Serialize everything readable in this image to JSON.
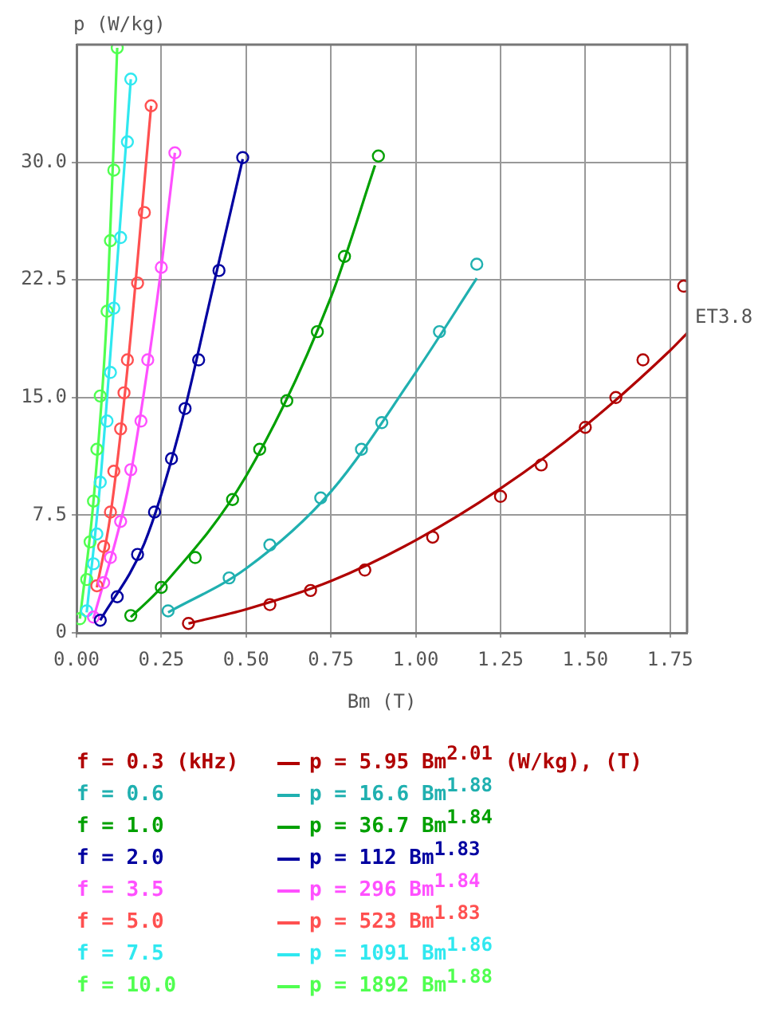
{
  "chart_data": {
    "type": "scatter",
    "xlabel": "Bm (T)",
    "ylabel": "p (W/kg)",
    "annotations": [
      "ET3.8"
    ],
    "xlim": [
      0,
      1.8
    ],
    "ylim": [
      0,
      37.5
    ],
    "xticks": [
      {
        "value": 0,
        "label": "0.00"
      },
      {
        "value": 0.25,
        "label": "0.25"
      },
      {
        "value": 0.5,
        "label": "0.50"
      },
      {
        "value": 0.75,
        "label": "0.75"
      },
      {
        "value": 1,
        "label": "1.00"
      },
      {
        "value": 1.25,
        "label": "1.25"
      },
      {
        "value": 1.5,
        "label": "1.50"
      },
      {
        "value": 1.75,
        "label": "1.75"
      }
    ],
    "yticks": [
      0,
      7.5,
      {
        "value": 15,
        "label": "15.0"
      },
      22.5,
      {
        "value": 30,
        "label": "30.0"
      }
    ],
    "grid": true,
    "legend": "bottom",
    "marker": "circle",
    "line_style": "solid",
    "series": [
      {
        "name": "f = 0.3 (kHz)",
        "color": "#b00000",
        "x": [
          0.33,
          0.57,
          0.69,
          0.85,
          1.05,
          1.25,
          1.37,
          1.5,
          1.59,
          1.67,
          1.79
        ],
        "values": [
          0.6,
          1.8,
          2.7,
          4.0,
          6.1,
          8.7,
          10.7,
          13.1,
          15.0,
          17.4,
          22.1
        ]
      },
      {
        "name": "f = 0.6",
        "color": "#20b0b0",
        "x": [
          0.27,
          0.45,
          0.57,
          0.72,
          0.84,
          0.9,
          1.07,
          1.18
        ],
        "values": [
          1.4,
          3.5,
          5.6,
          8.6,
          11.7,
          13.4,
          19.2,
          23.5
        ]
      },
      {
        "name": "f = 1.0",
        "color": "#00a000",
        "x": [
          0.16,
          0.25,
          0.35,
          0.46,
          0.54,
          0.62,
          0.71,
          0.79,
          0.89
        ],
        "values": [
          1.1,
          2.9,
          4.8,
          8.5,
          11.7,
          14.8,
          19.2,
          24.0,
          30.4
        ]
      },
      {
        "name": "f = 2.0",
        "color": "#0000a0",
        "x": [
          0.07,
          0.12,
          0.18,
          0.23,
          0.28,
          0.32,
          0.36,
          0.42,
          0.49
        ],
        "values": [
          0.8,
          2.3,
          5.0,
          7.7,
          11.1,
          14.3,
          17.4,
          23.1,
          30.3
        ]
      },
      {
        "name": "f = 3.5",
        "color": "#ff50ff",
        "x": [
          0.05,
          0.08,
          0.1,
          0.13,
          0.16,
          0.19,
          0.21,
          0.25,
          0.29
        ],
        "values": [
          1.0,
          3.2,
          4.8,
          7.1,
          10.4,
          13.5,
          17.4,
          23.3,
          30.6
        ]
      },
      {
        "name": "f = 5.0",
        "color": "#ff5050",
        "x": [
          0.06,
          0.08,
          0.1,
          0.11,
          0.13,
          0.14,
          0.15,
          0.18,
          0.2,
          0.22
        ],
        "values": [
          3.0,
          5.5,
          7.7,
          10.3,
          13.0,
          15.3,
          17.4,
          22.3,
          26.8,
          33.6
        ]
      },
      {
        "name": "f = 7.5",
        "color": "#30e8f0",
        "x": [
          0.03,
          0.05,
          0.06,
          0.07,
          0.09,
          0.1,
          0.11,
          0.13,
          0.15,
          0.16
        ],
        "values": [
          1.4,
          4.4,
          6.3,
          9.6,
          13.5,
          16.6,
          20.7,
          25.2,
          31.3,
          35.3
        ]
      },
      {
        "name": "f = 10.0",
        "color": "#50ff50",
        "x": [
          0.01,
          0.03,
          0.04,
          0.05,
          0.06,
          0.07,
          0.09,
          0.1,
          0.11,
          0.12
        ],
        "values": [
          0.9,
          3.4,
          5.8,
          8.4,
          11.7,
          15.1,
          20.5,
          25.0,
          29.5,
          37.3
        ]
      },
      {
        "type": "line",
        "marker": "none",
        "name": "p = 5.95 Bm$^{2.01}$ (W/kg), (T)",
        "color": "#b00000",
        "x": [
          0.33,
          0.5,
          0.75,
          1.0,
          1.25,
          1.5,
          1.75,
          1.8
        ],
        "values": [
          0.6,
          1.5,
          3.3,
          5.9,
          9.2,
          13.2,
          18.0,
          19.1
        ]
      },
      {
        "type": "line",
        "marker": "none",
        "name": "p = 16.6 Bm$^{1.88}$",
        "color": "#20b0b0",
        "x": [
          0.27,
          0.5,
          0.75,
          1.0,
          1.18
        ],
        "values": [
          1.3,
          4.1,
          9.0,
          16.6,
          22.6
        ]
      },
      {
        "type": "line",
        "marker": "none",
        "name": "p = 36.7 Bm$^{1.84}$",
        "color": "#00a000",
        "x": [
          0.16,
          0.25,
          0.5,
          0.75,
          0.88
        ],
        "values": [
          1.0,
          2.9,
          10.0,
          21.4,
          29.8
        ]
      },
      {
        "type": "line",
        "marker": "none",
        "name": "p = 112 Bm$^{1.83}$",
        "color": "#0000a0",
        "x": [
          0.07,
          0.2,
          0.3,
          0.4,
          0.49
        ],
        "values": [
          0.8,
          5.7,
          12.6,
          21.8,
          30.2
        ]
      },
      {
        "type": "line",
        "marker": "none",
        "name": "p = 296 Bm$^{1.84}$",
        "color": "#ff50ff",
        "x": [
          0.05,
          0.15,
          0.2,
          0.25,
          0.29
        ],
        "values": [
          0.9,
          9.0,
          15.5,
          23.3,
          30.6
        ]
      },
      {
        "type": "line",
        "marker": "none",
        "name": "p = 523 Bm$^{1.83}$",
        "color": "#ff5050",
        "x": [
          0.06,
          0.1,
          0.15,
          0.22
        ],
        "values": [
          2.9,
          7.5,
          16.8,
          33.6
        ]
      },
      {
        "type": "line",
        "marker": "none",
        "name": "p = 1091 Bm$^{1.86}$",
        "color": "#30e8f0",
        "x": [
          0.03,
          0.07,
          0.11,
          0.16
        ],
        "values": [
          1.3,
          9.6,
          20.7,
          35.3
        ]
      },
      {
        "type": "line",
        "marker": "none",
        "name": "p = 1892 Bm$^{1.88}$",
        "color": "#50ff50",
        "x": [
          0.01,
          0.05,
          0.09,
          0.12
        ],
        "values": [
          0.9,
          8.4,
          20.5,
          37.3
        ]
      }
    ]
  }
}
